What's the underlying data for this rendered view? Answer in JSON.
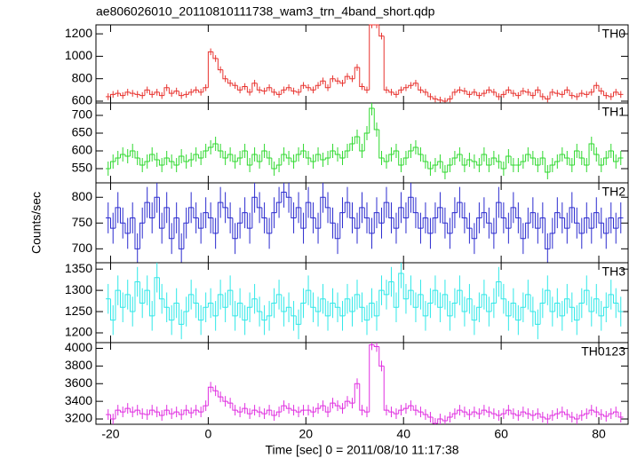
{
  "chart_data": [
    {
      "type": "histogram",
      "title": "ae806026010_20110810111738_wam3_trn_4band_short.qdp",
      "label": "TH0",
      "color": "#e8332f",
      "error": 30,
      "bins": [
        -21,
        -20,
        -19,
        -18,
        -17,
        -16,
        -15,
        -14,
        -13,
        -12,
        -11,
        -10,
        -9,
        -8,
        -7,
        -6,
        -5,
        -4,
        -3,
        -2,
        -1,
        0,
        1,
        2,
        3,
        4,
        5,
        6,
        7,
        8,
        9,
        10,
        11,
        12,
        13,
        14,
        15,
        16,
        17,
        18,
        19,
        20,
        21,
        22,
        23,
        24,
        25,
        26,
        27,
        28,
        29,
        30,
        31,
        32,
        33,
        34,
        35,
        36,
        37,
        38,
        39,
        40,
        41,
        42,
        43,
        44,
        45,
        46,
        47,
        48,
        49,
        50,
        51,
        52,
        53,
        54,
        55,
        56,
        57,
        58,
        59,
        60,
        61,
        62,
        63,
        64,
        65,
        66,
        67,
        68,
        69,
        70,
        71,
        72,
        73,
        74,
        75,
        76,
        77,
        78,
        79,
        80,
        81,
        82,
        83,
        84,
        85
      ],
      "values": [
        640,
        660,
        670,
        650,
        680,
        670,
        660,
        650,
        700,
        660,
        680,
        650,
        720,
        670,
        690,
        650,
        660,
        680,
        700,
        680,
        720,
        1040,
        980,
        880,
        800,
        760,
        740,
        700,
        730,
        680,
        760,
        700,
        690,
        720,
        680,
        660,
        700,
        720,
        690,
        680,
        740,
        720,
        700,
        740,
        780,
        720,
        800,
        780,
        760,
        820,
        800,
        900,
        730,
        700,
        1280,
        1280,
        1180,
        700,
        680,
        660,
        700,
        720,
        740,
        760,
        700,
        680,
        640,
        620,
        610,
        600,
        620,
        680,
        700,
        690,
        660,
        680,
        650,
        670,
        700,
        680,
        640,
        660,
        700,
        670,
        650,
        690,
        680,
        650,
        700,
        640,
        620,
        680,
        670,
        660,
        700,
        650,
        640,
        670,
        660,
        680,
        740,
        690,
        650,
        640,
        680,
        660
      ],
      "xlim": [
        -23,
        86
      ],
      "ylim": [
        584,
        1280
      ],
      "yticks": [
        600,
        800,
        1000,
        1200
      ]
    },
    {
      "type": "histogram",
      "label": "TH1",
      "color": "#2fd92f",
      "error": 20,
      "bins": [
        -21,
        -20,
        -19,
        -18,
        -17,
        -16,
        -15,
        -14,
        -13,
        -12,
        -11,
        -10,
        -9,
        -8,
        -7,
        -6,
        -5,
        -4,
        -3,
        -2,
        -1,
        0,
        1,
        2,
        3,
        4,
        5,
        6,
        7,
        8,
        9,
        10,
        11,
        12,
        13,
        14,
        15,
        16,
        17,
        18,
        19,
        20,
        21,
        22,
        23,
        24,
        25,
        26,
        27,
        28,
        29,
        30,
        31,
        32,
        33,
        34,
        35,
        36,
        37,
        38,
        39,
        40,
        41,
        42,
        43,
        44,
        45,
        46,
        47,
        48,
        49,
        50,
        51,
        52,
        53,
        54,
        55,
        56,
        57,
        58,
        59,
        60,
        61,
        62,
        63,
        64,
        65,
        66,
        67,
        68,
        69,
        70,
        71,
        72,
        73,
        74,
        75,
        76,
        77,
        78,
        79,
        80,
        81,
        82,
        83,
        84,
        85
      ],
      "values": [
        550,
        570,
        580,
        590,
        585,
        600,
        580,
        560,
        570,
        590,
        575,
        560,
        580,
        570,
        560,
        585,
        570,
        575,
        590,
        580,
        600,
        610,
        620,
        600,
        580,
        590,
        570,
        580,
        600,
        560,
        590,
        570,
        600,
        580,
        550,
        560,
        590,
        580,
        570,
        590,
        600,
        580,
        570,
        590,
        575,
        580,
        600,
        590,
        580,
        600,
        620,
        640,
        600,
        650,
        720,
        660,
        580,
        570,
        590,
        600,
        560,
        580,
        600,
        610,
        590,
        570,
        550,
        560,
        570,
        540,
        560,
        580,
        590,
        560,
        575,
        570,
        560,
        590,
        560,
        580,
        570,
        550,
        585,
        560,
        560,
        570,
        590,
        580,
        560,
        580,
        540,
        560,
        570,
        590,
        580,
        560,
        600,
        580,
        560,
        620,
        590,
        560,
        580,
        600,
        570,
        580
      ],
      "xlim": [
        -23,
        86
      ],
      "ylim": [
        510,
        735
      ],
      "yticks": [
        550,
        600,
        650,
        700
      ]
    },
    {
      "type": "histogram",
      "label": "TH2",
      "ylabel": "Counts/sec",
      "color": "#2b2bcf",
      "error": 30,
      "bins": [
        -21,
        -20,
        -19,
        -18,
        -17,
        -16,
        -15,
        -14,
        -13,
        -12,
        -11,
        -10,
        -9,
        -8,
        -7,
        -6,
        -5,
        -4,
        -3,
        -2,
        -1,
        0,
        1,
        2,
        3,
        4,
        5,
        6,
        7,
        8,
        9,
        10,
        11,
        12,
        13,
        14,
        15,
        16,
        17,
        18,
        19,
        20,
        21,
        22,
        23,
        24,
        25,
        26,
        27,
        28,
        29,
        30,
        31,
        32,
        33,
        34,
        35,
        36,
        37,
        38,
        39,
        40,
        41,
        42,
        43,
        44,
        45,
        46,
        47,
        48,
        49,
        50,
        51,
        52,
        53,
        54,
        55,
        56,
        57,
        58,
        59,
        60,
        61,
        62,
        63,
        64,
        65,
        66,
        67,
        68,
        69,
        70,
        71,
        72,
        73,
        74,
        75,
        76,
        77,
        78,
        79,
        80,
        81,
        82,
        83,
        84,
        85
      ],
      "values": [
        760,
        740,
        780,
        750,
        730,
        760,
        700,
        750,
        790,
        760,
        800,
        740,
        780,
        720,
        760,
        700,
        750,
        780,
        760,
        740,
        770,
        760,
        730,
        790,
        780,
        760,
        720,
        750,
        770,
        740,
        800,
        780,
        760,
        730,
        770,
        790,
        810,
        800,
        760,
        780,
        740,
        790,
        760,
        740,
        800,
        780,
        750,
        720,
        770,
        790,
        760,
        740,
        780,
        760,
        730,
        770,
        750,
        790,
        760,
        740,
        780,
        760,
        800,
        770,
        740,
        760,
        730,
        760,
        780,
        750,
        730,
        770,
        790,
        760,
        740,
        720,
        760,
        770,
        750,
        730,
        790,
        760,
        740,
        780,
        760,
        720,
        750,
        770,
        740,
        760,
        700,
        730,
        770,
        760,
        740,
        780,
        750,
        730,
        760,
        740,
        770,
        750,
        730,
        760,
        740,
        760
      ],
      "xlim": [
        -23,
        86
      ],
      "ylim": [
        673,
        828
      ],
      "yticks": [
        700,
        750,
        800
      ]
    },
    {
      "type": "histogram",
      "label": "TH3",
      "color": "#2fe8e8",
      "error": 35,
      "bins": [
        -21,
        -20,
        -19,
        -18,
        -17,
        -16,
        -15,
        -14,
        -13,
        -12,
        -11,
        -10,
        -9,
        -8,
        -7,
        -6,
        -5,
        -4,
        -3,
        -2,
        -1,
        0,
        1,
        2,
        3,
        4,
        5,
        6,
        7,
        8,
        9,
        10,
        11,
        12,
        13,
        14,
        15,
        16,
        17,
        18,
        19,
        20,
        21,
        22,
        23,
        24,
        25,
        26,
        27,
        28,
        29,
        30,
        31,
        32,
        33,
        34,
        35,
        36,
        37,
        38,
        39,
        40,
        41,
        42,
        43,
        44,
        45,
        46,
        47,
        48,
        49,
        50,
        51,
        52,
        53,
        54,
        55,
        56,
        57,
        58,
        59,
        60,
        61,
        62,
        63,
        64,
        65,
        66,
        67,
        68,
        69,
        70,
        71,
        72,
        73,
        74,
        75,
        76,
        77,
        78,
        79,
        80,
        81,
        82,
        83,
        84,
        85
      ],
      "values": [
        1280,
        1230,
        1300,
        1260,
        1290,
        1250,
        1320,
        1270,
        1300,
        1240,
        1330,
        1280,
        1260,
        1230,
        1270,
        1220,
        1250,
        1290,
        1270,
        1230,
        1260,
        1270,
        1240,
        1290,
        1260,
        1300,
        1240,
        1270,
        1230,
        1260,
        1280,
        1250,
        1230,
        1240,
        1270,
        1290,
        1250,
        1260,
        1240,
        1220,
        1270,
        1300,
        1260,
        1250,
        1280,
        1240,
        1270,
        1260,
        1240,
        1280,
        1250,
        1290,
        1260,
        1230,
        1270,
        1240,
        1300,
        1290,
        1320,
        1260,
        1340,
        1280,
        1300,
        1260,
        1290,
        1240,
        1270,
        1300,
        1260,
        1290,
        1240,
        1270,
        1300,
        1250,
        1280,
        1230,
        1260,
        1290,
        1250,
        1270,
        1320,
        1280,
        1240,
        1270,
        1230,
        1260,
        1290,
        1250,
        1220,
        1270,
        1300,
        1250,
        1270,
        1240,
        1280,
        1260,
        1230,
        1270,
        1300,
        1250,
        1280,
        1240,
        1260,
        1290,
        1270,
        1250
      ],
      "xlim": [
        -23,
        86
      ],
      "ylim": [
        1177,
        1365
      ],
      "yticks": [
        1200,
        1250,
        1300,
        1350
      ]
    },
    {
      "type": "histogram",
      "label": "TH0123",
      "xlabel": "Time [sec] 0 = 2011/08/10 11:17:38",
      "color": "#e02fe0",
      "error": 60,
      "bins": [
        -21,
        -20,
        -19,
        -18,
        -17,
        -16,
        -15,
        -14,
        -13,
        -12,
        -11,
        -10,
        -9,
        -8,
        -7,
        -6,
        -5,
        -4,
        -3,
        -2,
        -1,
        0,
        1,
        2,
        3,
        4,
        5,
        6,
        7,
        8,
        9,
        10,
        11,
        12,
        13,
        14,
        15,
        16,
        17,
        18,
        19,
        20,
        21,
        22,
        23,
        24,
        25,
        26,
        27,
        28,
        29,
        30,
        31,
        32,
        33,
        34,
        35,
        36,
        37,
        38,
        39,
        40,
        41,
        42,
        43,
        44,
        45,
        46,
        47,
        48,
        49,
        50,
        51,
        52,
        53,
        54,
        55,
        56,
        57,
        58,
        59,
        60,
        61,
        62,
        63,
        64,
        65,
        66,
        67,
        68,
        69,
        70,
        71,
        72,
        73,
        74,
        75,
        76,
        77,
        78,
        79,
        80,
        81,
        82,
        83,
        84,
        85
      ],
      "values": [
        3250,
        3200,
        3300,
        3280,
        3320,
        3280,
        3300,
        3260,
        3250,
        3300,
        3280,
        3240,
        3300,
        3260,
        3280,
        3250,
        3300,
        3270,
        3300,
        3280,
        3350,
        3560,
        3520,
        3450,
        3400,
        3380,
        3300,
        3280,
        3320,
        3260,
        3300,
        3280,
        3260,
        3300,
        3240,
        3280,
        3350,
        3320,
        3300,
        3280,
        3300,
        3300,
        3280,
        3320,
        3350,
        3280,
        3380,
        3350,
        3320,
        3400,
        3380,
        3600,
        3300,
        3280,
        4040,
        4020,
        3800,
        3300,
        3280,
        3260,
        3300,
        3320,
        3350,
        3300,
        3280,
        3250,
        3220,
        3150,
        3200,
        3180,
        3220,
        3260,
        3300,
        3280,
        3250,
        3280,
        3260,
        3300,
        3280,
        3260,
        3240,
        3260,
        3300,
        3260,
        3240,
        3280,
        3260,
        3240,
        3260,
        3220,
        3200,
        3240,
        3260,
        3280,
        3250,
        3220,
        3200,
        3240,
        3260,
        3300,
        3280,
        3250,
        3230,
        3260,
        3280,
        3220
      ],
      "xlim": [
        -23,
        86
      ],
      "xticks": [
        -20,
        0,
        20,
        40,
        60,
        80
      ],
      "ylim": [
        3140,
        4065
      ],
      "yticks": [
        3200,
        3400,
        3600,
        3800,
        4000
      ]
    }
  ]
}
